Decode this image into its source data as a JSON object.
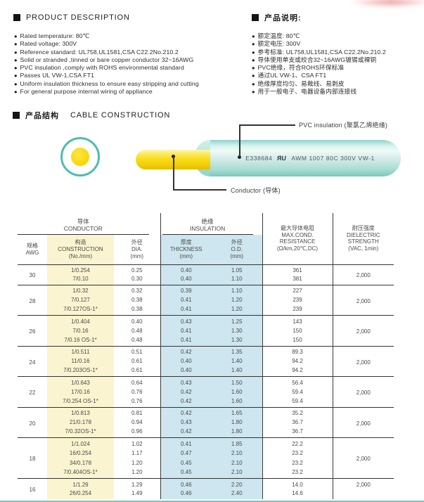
{
  "header_left": {
    "title": "PRODUCT  DESCRIPTION",
    "bullets": [
      "Rated temperature: 80℃",
      "Rated voltage: 300V",
      "Reference standard: UL758,UL1581,CSA C22.2No.210.2",
      "Solid or stranded ,tinned or bare copper conductor 32~16AWG",
      "PVC insulation ,comply with ROHS environmental standard",
      "Passes UL VW-1,CSA FT1",
      "Uniform insulation thickness to ensure easy stripping and cutting",
      "For general purpose internal wiring of appliance"
    ]
  },
  "header_right": {
    "title": "产品说明:",
    "bullets": [
      "额定温度: 80℃",
      "额定电压: 300V",
      "参考标准: UL758,UL1581,CSA C22.2No.210.2",
      "导体使用单支或绞合32~16AWG镀锡或裸铜",
      "PVC绝缘，符合ROHS环保标准",
      "通过UL VW-1、CSA FT1",
      "绝缘厚度均匀、易裁线、易剥皮",
      "用于一般电子、电器设备内部连接线"
    ]
  },
  "construction": {
    "title_cn": "产品结构",
    "title_en": "CABLE  CONSTRUCTION",
    "labels": {
      "insulation": "PVC insulation (聚氯乙烯绝缘)",
      "conductor": "Conductor (导体)"
    },
    "print": {
      "cert": "E338684",
      "mark": "ЯU",
      "text": "AWM 1007 80C 300V VW-1"
    },
    "colors": {
      "insulation_teal": "#4CBDB0",
      "conductor_yellow": "#F9DC1A",
      "band_yellow": "#FBF4D0",
      "band_blue": "#CDE6EF"
    }
  },
  "table": {
    "group_header": {
      "conductor_cn": "导体",
      "conductor_en": "CONDUCTOR",
      "insulation_cn": "绝缘",
      "insulation_en": "INSULATION"
    },
    "headers": {
      "awg_cn": "规格",
      "awg_en": "AWG",
      "cons_cn": "构造",
      "cons_en": "CONSTRUCTION",
      "cons_sub": "(No./mm)",
      "dia_cn": "外径",
      "dia_en": "DIA.",
      "dia_sub": "(mm)",
      "thk_cn": "厚度",
      "thk_en": "THICKNESS",
      "thk_sub": "(mm)",
      "od_cn": "外径",
      "od_en": "O.D.",
      "od_sub": "(mm)",
      "res_cn": "最大导体电阻",
      "res_en1": "MAX.COND.",
      "res_en2": "RESISTANCE",
      "res_sub": "(Ω/km,20℃,DC)",
      "diel_cn": "耐压强度",
      "diel_en1": "DIELECTRIC",
      "diel_en2": "STRENGTH",
      "diel_sub": "(VAC, 1min)"
    },
    "groups": [
      {
        "awg": "30",
        "dielectric": "2,000",
        "rows": [
          [
            "1/0.254",
            "0.25",
            "0.40",
            "1.05",
            "361"
          ],
          [
            "7/0.10",
            "0.30",
            "0.40",
            "1.10",
            "381"
          ]
        ]
      },
      {
        "awg": "28",
        "dielectric": "2,000",
        "rows": [
          [
            "1/0.32",
            "0.32",
            "0.39",
            "1.10",
            "227"
          ],
          [
            "7/0.127",
            "0.38",
            "0.41",
            "1.20",
            "239"
          ],
          [
            "7/0.127OS-1*",
            "0.38",
            "0.41",
            "1.20",
            "239"
          ]
        ]
      },
      {
        "awg": "26",
        "dielectric": "2,000",
        "rows": [
          [
            "1/0.404",
            "0.40",
            "0.43",
            "1.25",
            "143"
          ],
          [
            "7/0.16",
            "0.48",
            "0.41",
            "1.30",
            "150"
          ],
          [
            "7/0.16 OS-1*",
            "0.48",
            "0.41",
            "1.30",
            "150"
          ]
        ]
      },
      {
        "awg": "24",
        "dielectric": "2,000",
        "rows": [
          [
            "1/0.511",
            "0.51",
            "0.42",
            "1.35",
            "89.3"
          ],
          [
            "11/0.16",
            "0.61",
            "0.40",
            "1.40",
            "94.2"
          ],
          [
            "7/0.203OS-1*",
            "0.61",
            "0.40",
            "1.40",
            "94.2"
          ]
        ]
      },
      {
        "awg": "22",
        "dielectric": "2,000",
        "rows": [
          [
            "1/0.643",
            "0.64",
            "0.43",
            "1.50",
            "56.4"
          ],
          [
            "17/0.16",
            "0.76",
            "0.42",
            "1.60",
            "59.4"
          ],
          [
            "7/0.254 OS-1*",
            "0.76",
            "0.42",
            "1.60",
            "59.4"
          ]
        ]
      },
      {
        "awg": "20",
        "dielectric": "2,000",
        "rows": [
          [
            "1/0.813",
            "0.81",
            "0.42",
            "1.65",
            "35.2"
          ],
          [
            "21/0.178",
            "0.94",
            "0.43",
            "1.80",
            "36.7"
          ],
          [
            "7/0.32OS-1*",
            "0.96",
            "0.42",
            "1.80",
            "36.7"
          ]
        ]
      },
      {
        "awg": "18",
        "dielectric": "2,000",
        "rows": [
          [
            "1/1.024",
            "1.02",
            "0.41",
            "1.85",
            "22.2"
          ],
          [
            "16/0.254",
            "1.17",
            "0.47",
            "2.10",
            "23.2"
          ],
          [
            "34/0.178",
            "1.20",
            "0.45",
            "2.10",
            "23.2"
          ],
          [
            "7/0.404OS-1*",
            "1.20",
            "0.45",
            "2.10",
            "23.2"
          ]
        ]
      },
      {
        "awg": "16",
        "dielectric": "2,000",
        "cut": true,
        "rows": [
          [
            "1/1.29",
            "1.29",
            "0.46",
            "2.20",
            "14.0"
          ],
          [
            "26/0.254",
            "1.49",
            "0.46",
            "2.40",
            "14.6"
          ]
        ]
      }
    ]
  }
}
